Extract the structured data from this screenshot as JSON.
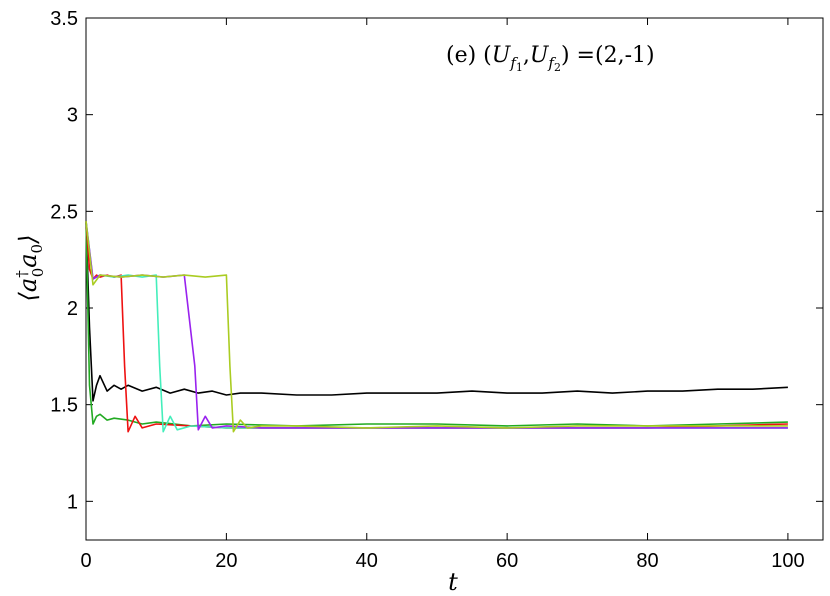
{
  "chart_data": {
    "type": "line",
    "title": "",
    "annotation": "(e) (U_{f_1}, U_{f_2}) =(2,-1)",
    "annotation_parts": {
      "prefix": "(e) (",
      "u1": "U",
      "u1_sub": "f",
      "u1_subsub": "1",
      "comma": ",",
      "u2": "U",
      "u2_sub": "f",
      "u2_subsub": "2",
      "suffix": ") =(2,-1)"
    },
    "xlabel": "t",
    "ylabel": "⟨a₀†a₀⟩",
    "ylabel_parts": {
      "open": "⟨",
      "a1": "a",
      "sup": "†",
      "sub1": "0",
      "a2": "a",
      "sub2": "0",
      "close": "⟩"
    },
    "xlim": [
      0,
      105
    ],
    "ylim": [
      0.8,
      3.5
    ],
    "x_ticks": [
      0,
      20,
      40,
      60,
      80,
      100
    ],
    "y_ticks": [
      1,
      1.5,
      2,
      2.5,
      3,
      3.5
    ],
    "x_tick_labels": [
      "0",
      "20",
      "40",
      "60",
      "80",
      "100"
    ],
    "y_tick_labels": [
      "1",
      "1.5",
      "2",
      "2.5",
      "3",
      "3.5"
    ],
    "grid": false,
    "legend": "none",
    "series": [
      {
        "color": "#000000",
        "x": [
          0,
          0.5,
          1,
          1.5,
          2,
          3,
          4,
          5,
          6,
          8,
          10,
          12,
          14,
          16,
          18,
          20,
          22,
          25,
          30,
          35,
          40,
          45,
          50,
          55,
          60,
          65,
          70,
          75,
          80,
          85,
          90,
          95,
          100
        ],
        "y": [
          2.45,
          1.9,
          1.52,
          1.6,
          1.65,
          1.57,
          1.6,
          1.58,
          1.6,
          1.57,
          1.59,
          1.56,
          1.58,
          1.56,
          1.57,
          1.55,
          1.56,
          1.56,
          1.55,
          1.55,
          1.56,
          1.56,
          1.56,
          1.57,
          1.56,
          1.56,
          1.57,
          1.56,
          1.57,
          1.57,
          1.58,
          1.58,
          1.59
        ]
      },
      {
        "color": "#22aa22",
        "x": [
          0,
          0.5,
          1,
          1.5,
          2,
          3,
          4,
          6,
          8,
          10,
          15,
          20,
          30,
          40,
          50,
          60,
          70,
          80,
          90,
          100
        ],
        "y": [
          2.45,
          1.6,
          1.4,
          1.44,
          1.45,
          1.42,
          1.43,
          1.42,
          1.4,
          1.41,
          1.39,
          1.4,
          1.39,
          1.4,
          1.4,
          1.39,
          1.4,
          1.39,
          1.4,
          1.41
        ]
      },
      {
        "color": "#ee1111",
        "x": [
          0,
          0.5,
          1,
          1.5,
          2,
          3,
          4,
          5,
          5.5,
          6,
          7,
          8,
          10,
          15,
          20,
          30,
          40,
          50,
          60,
          70,
          80,
          90,
          100
        ],
        "y": [
          2.45,
          2.2,
          2.15,
          2.17,
          2.16,
          2.17,
          2.16,
          2.17,
          1.7,
          1.36,
          1.44,
          1.38,
          1.4,
          1.39,
          1.38,
          1.38,
          1.38,
          1.38,
          1.38,
          1.38,
          1.38,
          1.39,
          1.4
        ]
      },
      {
        "color": "#44eebb",
        "x": [
          0,
          1,
          2,
          4,
          6,
          8,
          10,
          10.5,
          11,
          12,
          13,
          15,
          20,
          30,
          40,
          50,
          60,
          70,
          80,
          90,
          100
        ],
        "y": [
          2.45,
          2.15,
          2.17,
          2.16,
          2.17,
          2.16,
          2.17,
          1.7,
          1.36,
          1.44,
          1.37,
          1.39,
          1.38,
          1.38,
          1.38,
          1.38,
          1.38,
          1.38,
          1.38,
          1.38,
          1.38
        ]
      },
      {
        "color": "#9922ee",
        "x": [
          0,
          1,
          2,
          5,
          8,
          11,
          14,
          15.5,
          16,
          17,
          18,
          20,
          25,
          30,
          40,
          50,
          60,
          70,
          80,
          90,
          100
        ],
        "y": [
          2.45,
          2.15,
          2.17,
          2.16,
          2.17,
          2.16,
          2.17,
          1.7,
          1.37,
          1.44,
          1.38,
          1.39,
          1.38,
          1.38,
          1.38,
          1.38,
          1.38,
          1.38,
          1.38,
          1.38,
          1.38
        ]
      },
      {
        "color": "#aacc22",
        "x": [
          0,
          1,
          2,
          5,
          8,
          11,
          14,
          17,
          20,
          20.5,
          21,
          22,
          23,
          25,
          30,
          40,
          50,
          60,
          70,
          80,
          90,
          100
        ],
        "y": [
          2.45,
          2.12,
          2.17,
          2.16,
          2.17,
          2.16,
          2.17,
          2.16,
          2.17,
          1.7,
          1.36,
          1.42,
          1.38,
          1.39,
          1.39,
          1.38,
          1.39,
          1.38,
          1.39,
          1.39,
          1.39,
          1.39
        ]
      }
    ]
  }
}
